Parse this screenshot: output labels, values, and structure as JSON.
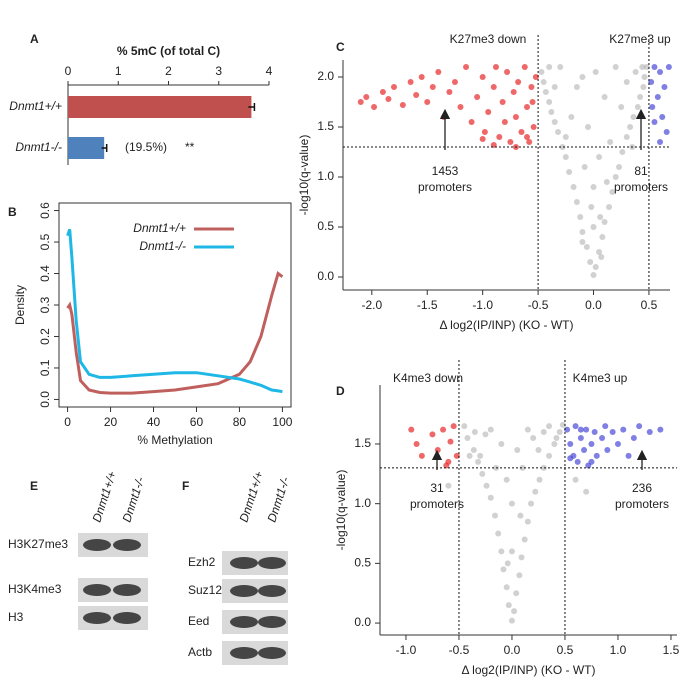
{
  "panel_labels": [
    "A",
    "B",
    "C",
    "D",
    "E",
    "F"
  ],
  "chart_data": [
    {
      "type": "hbar",
      "title": "% 5mC (of total C)",
      "categories": [
        "Dnmt1+/+",
        "Dnmt1-/-"
      ],
      "values": [
        3.65,
        0.72
      ],
      "errors": [
        0.06,
        0.05
      ],
      "colors": [
        "#c0504d",
        "#4f81bd"
      ],
      "xlim": [
        0,
        4
      ],
      "xticks": [
        0,
        1,
        2,
        3,
        4
      ],
      "annotations": [
        "(19.5%)",
        "**"
      ]
    },
    {
      "type": "line",
      "xlabel": "% Methylation",
      "ylabel": "Density",
      "x": [
        0,
        1,
        2,
        4,
        6,
        10,
        15,
        20,
        30,
        40,
        50,
        60,
        70,
        80,
        85,
        90,
        95,
        98,
        100
      ],
      "series": [
        {
          "name": "Dnmt1+/+",
          "color": "#c0605e",
          "values": [
            0.29,
            0.3,
            0.27,
            0.15,
            0.06,
            0.03,
            0.022,
            0.02,
            0.02,
            0.025,
            0.03,
            0.04,
            0.05,
            0.08,
            0.12,
            0.2,
            0.33,
            0.4,
            0.39
          ]
        },
        {
          "name": "Dnmt1-/-",
          "color": "#1fb8e6",
          "values": [
            0.52,
            0.54,
            0.45,
            0.25,
            0.12,
            0.08,
            0.07,
            0.07,
            0.075,
            0.08,
            0.085,
            0.085,
            0.075,
            0.065,
            0.055,
            0.045,
            0.03,
            0.027,
            0.025
          ]
        }
      ],
      "xlim": [
        -4,
        104
      ],
      "xticks": [
        0,
        20,
        40,
        60,
        80,
        100
      ],
      "ylim": [
        -0.024,
        0.624
      ],
      "yticks": [
        {
          "value": 0,
          "label": "0.0"
        },
        0.1,
        0.2,
        0.3,
        0.4,
        0.5,
        0.6
      ],
      "legend": "upper right"
    },
    {
      "type": "scatter",
      "xlabel": "Δ log2(IP/INP) (KO - WT)",
      "ylabel": "-log10(q-value)",
      "series": [
        {
          "color": "#9a9a9a",
          "x": [
            0,
            0.02,
            -0.03,
            0.05,
            -0.06,
            0.08,
            -0.1,
            0.1,
            -0.12,
            0.14,
            -0.15,
            0.17,
            -0.18,
            0.2,
            -0.22,
            0.23,
            -0.25,
            0.26,
            -0.28,
            0.3,
            -0.32,
            0.33,
            -0.35,
            0.36,
            -0.38,
            0.4,
            -0.4,
            0.42,
            -0.43,
            0.45,
            -0.45,
            0.46,
            -0.47,
            0.48,
            0,
            0,
            0.05,
            -0.05,
            0.1,
            -0.1,
            0.2,
            -0.2,
            0.15,
            -0.3,
            0.3,
            0.02,
            -0.15,
            0.25,
            -0.08,
            0.12,
            -0.02,
            0.06,
            -0.35,
            0.38,
            -0.25,
            0.35,
            -0.1,
            0.07,
            -0.4,
            0.44
          ],
          "values": [
            0.02,
            0.1,
            0.15,
            0.25,
            0.3,
            0.4,
            0.45,
            0.55,
            0.6,
            0.7,
            0.75,
            0.85,
            0.9,
            1.0,
            1.05,
            1.1,
            1.2,
            1.25,
            1.3,
            1.4,
            1.45,
            1.5,
            1.55,
            1.6,
            1.65,
            1.7,
            1.75,
            1.8,
            1.85,
            1.9,
            1.95,
            2.0,
            2.05,
            2.1,
            0.5,
            0.9,
            1.2,
            1.5,
            1.8,
            2.0,
            2.1,
            1.6,
            1.35,
            2.1,
            1.95,
            2.05,
            1.9,
            1.7,
            1.1,
            0.95,
            0.7,
            0.6,
            1.9,
            2.05,
            1.4,
            1.3,
            0.35,
            0.2,
            2.1,
            2.1
          ]
        },
        {
          "color": "#e8282a",
          "x": [
            -2.1,
            -2.05,
            -1.98,
            -1.9,
            -1.85,
            -1.8,
            -1.72,
            -1.65,
            -1.6,
            -1.55,
            -1.5,
            -1.45,
            -1.4,
            -1.35,
            -1.3,
            -1.25,
            -1.2,
            -1.15,
            -1.1,
            -1.05,
            -1.0,
            -0.98,
            -0.95,
            -0.9,
            -0.88,
            -0.85,
            -0.82,
            -0.8,
            -0.78,
            -0.75,
            -0.72,
            -0.7,
            -0.68,
            -0.65,
            -0.62,
            -0.6,
            -0.58,
            -0.56,
            -0.54,
            -0.52,
            -0.7,
            -0.9,
            -0.6,
            -1.0,
            -0.55
          ],
          "values": [
            1.75,
            1.8,
            1.7,
            1.85,
            1.78,
            1.9,
            1.72,
            1.95,
            1.82,
            2.0,
            1.75,
            1.9,
            2.05,
            1.6,
            1.85,
            1.95,
            1.7,
            2.1,
            1.55,
            1.8,
            2.0,
            1.45,
            1.65,
            1.9,
            2.1,
            1.4,
            1.75,
            1.55,
            2.05,
            1.35,
            1.85,
            1.6,
            1.95,
            1.45,
            2.1,
            1.7,
            1.35,
            1.9,
            1.5,
            2.0,
            1.3,
            1.32,
            1.4,
            1.38,
            1.75
          ]
        },
        {
          "color": "#4a4ad8",
          "x": [
            0.52,
            0.55,
            0.58,
            0.6,
            0.62,
            0.64,
            0.66,
            0.55,
            0.6,
            0.68,
            0.53
          ],
          "values": [
            1.95,
            2.1,
            1.8,
            2.05,
            1.6,
            1.9,
            1.45,
            1.55,
            1.35,
            2.1,
            1.7
          ]
        }
      ],
      "xlim": [
        -2.26,
        0.69
      ],
      "xticks": [
        {
          "value": -2,
          "label": "-2.0"
        },
        -1.5,
        {
          "value": -1,
          "label": "-1.0"
        },
        -0.5,
        {
          "value": 0,
          "label": "0.0"
        },
        0.5
      ],
      "ylim": [
        -0.13,
        2.17
      ],
      "yticks": [
        {
          "value": 0,
          "label": "0.0"
        },
        0.5,
        {
          "value": 1,
          "label": "1.0"
        },
        1.5,
        {
          "value": 2,
          "label": "2.0"
        }
      ],
      "hlines": [
        1.3
      ],
      "vlines": [
        -0.5,
        0.5
      ],
      "annotations": [
        "K27me3 down",
        "K27me3 up",
        [
          "1453",
          "promoters"
        ],
        [
          "81",
          "promoters"
        ]
      ],
      "annotation_colors": [
        "#e8413c",
        "#6a6ad8",
        "#222222",
        "#222222"
      ]
    },
    {
      "type": "scatter",
      "xlabel": "Δ log2(IP/INP) (KO - WT)",
      "ylabel": "-log10(q-value)",
      "series": [
        {
          "color": "#9a9a9a",
          "x": [
            0,
            0.02,
            -0.03,
            0.04,
            -0.05,
            0.07,
            -0.08,
            0.09,
            -0.1,
            0.12,
            -0.13,
            0.15,
            -0.16,
            0.18,
            -0.2,
            0.22,
            -0.24,
            0.26,
            -0.28,
            0.3,
            -0.32,
            0.35,
            -0.36,
            0.4,
            -0.42,
            0.45,
            -0.45,
            0.48,
            0,
            0,
            0.1,
            -0.1,
            0.2,
            -0.2,
            0.3,
            -0.3,
            0.05,
            -0.05,
            0.15,
            -0.15,
            0.25,
            -0.25,
            0.35,
            -0.35,
            0.08,
            -0.04,
            0.42,
            -0.4,
            0.6,
            0.7,
            -0.6
          ],
          "values": [
            0.02,
            0.1,
            0.15,
            0.25,
            0.3,
            0.4,
            0.45,
            0.55,
            0.6,
            0.7,
            0.75,
            0.85,
            0.9,
            1.0,
            1.05,
            1.1,
            1.15,
            1.2,
            1.25,
            1.3,
            1.35,
            1.4,
            1.45,
            1.5,
            1.55,
            1.6,
            1.65,
            1.66,
            0.6,
            1.0,
            1.3,
            1.5,
            1.55,
            1.62,
            1.6,
            1.4,
            1.45,
            1.2,
            1.62,
            1.3,
            1.45,
            1.58,
            1.65,
            1.6,
            0.9,
            0.5,
            1.55,
            1.4,
            1.2,
            1.1,
            1.15
          ]
        },
        {
          "color": "#e8282a",
          "x": [
            -0.95,
            -0.9,
            -0.85,
            -0.75,
            -0.7,
            -0.65,
            -0.6,
            -0.58,
            -0.55,
            -0.52,
            -0.62
          ],
          "values": [
            1.62,
            1.5,
            1.4,
            1.58,
            1.45,
            1.62,
            1.35,
            1.52,
            1.65,
            1.4,
            1.32
          ]
        },
        {
          "color": "#4a4ad8",
          "x": [
            0.52,
            0.55,
            0.58,
            0.6,
            0.62,
            0.65,
            0.68,
            0.7,
            0.72,
            0.75,
            0.78,
            0.8,
            0.85,
            0.88,
            0.9,
            0.95,
            1.0,
            1.05,
            1.1,
            1.15,
            1.2,
            1.3,
            1.4,
            0.55,
            0.65,
            0.75
          ],
          "values": [
            1.62,
            1.5,
            1.4,
            1.65,
            1.35,
            1.55,
            1.45,
            1.62,
            1.32,
            1.5,
            1.6,
            1.4,
            1.55,
            1.65,
            1.45,
            1.6,
            1.5,
            1.62,
            1.4,
            1.55,
            1.65,
            1.6,
            1.62,
            1.38,
            1.62,
            1.35
          ]
        }
      ],
      "xlim": [
        -1.245,
        1.557
      ],
      "xticks": [
        {
          "value": -1,
          "label": "-1.0"
        },
        -0.5,
        {
          "value": 0,
          "label": "0.0"
        },
        0.5,
        {
          "value": 1,
          "label": "1.0"
        },
        1.5
      ],
      "ylim": [
        -0.1,
        1.994
      ],
      "yticks": [
        {
          "value": 0,
          "label": "0.0"
        },
        0.5,
        {
          "value": 1,
          "label": "1.0"
        },
        1.5
      ],
      "hlines": [
        1.3
      ],
      "vlines": [
        -0.5,
        0.5
      ],
      "annotations": [
        "K4me3 down",
        "K4me3 up",
        [
          "31",
          "promoters"
        ],
        [
          "236",
          "promoters"
        ]
      ],
      "annotation_colors": [
        "#e8413c",
        "#6a6ad8",
        "#222222",
        "#222222"
      ]
    }
  ],
  "blots": [
    {
      "columns": [
        "Dnmt1+/+",
        "Dnmt1-/-"
      ],
      "rows": [
        "H3K27me3",
        "H3K4me3",
        "H3"
      ]
    },
    {
      "columns": [
        "Dnmt1+/+",
        "Dnmt1-/-"
      ],
      "rows": [
        "Ezh2",
        "Suz12",
        "Eed",
        "Actb"
      ]
    }
  ]
}
